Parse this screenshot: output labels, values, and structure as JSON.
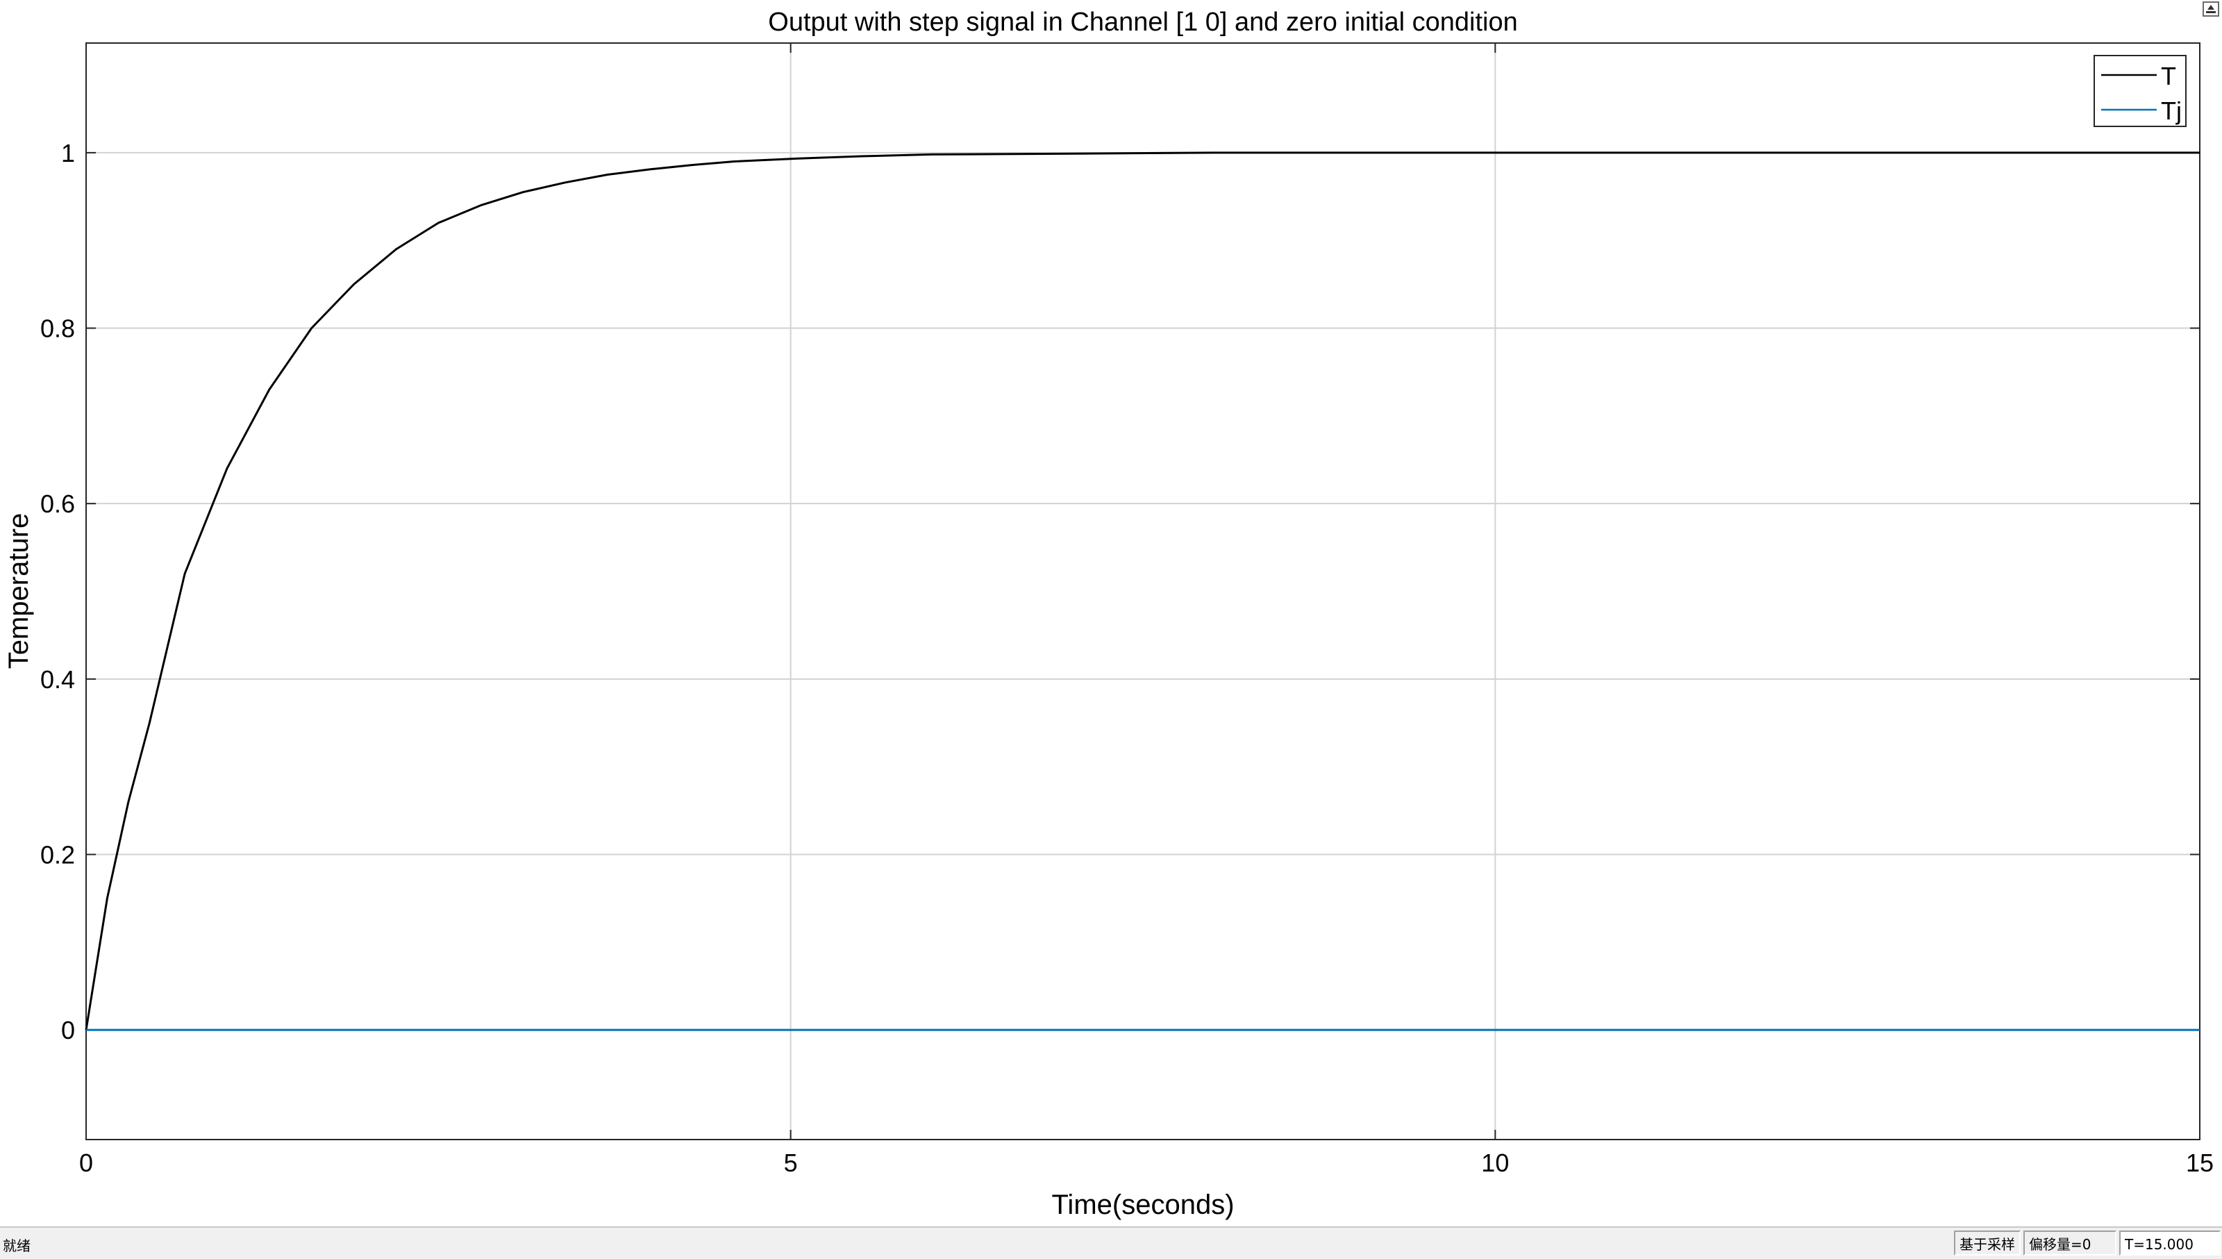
{
  "window": {
    "status": {
      "ready": "就绪",
      "sampling": "基于采样",
      "offset": "偏移量=0",
      "time": "T=15.000"
    }
  },
  "colors": {
    "series_T": "#000000",
    "series_Tj": "#0072bd",
    "grid": "#d2d2d2",
    "axes": "#262626"
  },
  "chart_data": {
    "type": "line",
    "title": "Output with step signal in Channel [1 0] and zero initial condition",
    "xlabel": "Time(seconds)",
    "ylabel": "Temperature",
    "xlim": [
      0,
      15
    ],
    "ylim": [
      -0.125,
      1.125
    ],
    "xticks": [
      0,
      5,
      10,
      15
    ],
    "xtick_labels": [
      "0",
      "5",
      "10",
      "15"
    ],
    "yticks": [
      0,
      0.2,
      0.4,
      0.6,
      0.8,
      1
    ],
    "ytick_labels": [
      "0",
      "0.2",
      "0.4",
      "0.6",
      "0.8",
      "1"
    ],
    "grid": true,
    "legend_position": "top-right",
    "series": [
      {
        "name": "T",
        "color": "#000000",
        "x": [
          0,
          0.15,
          0.3,
          0.45,
          0.7,
          1.0,
          1.3,
          1.6,
          1.9,
          2.2,
          2.5,
          2.8,
          3.1,
          3.4,
          3.7,
          4.0,
          4.3,
          4.6,
          5.0,
          5.5,
          6.0,
          7.0,
          8.0,
          10.0,
          12.0,
          15.0
        ],
        "y": [
          0,
          0.15,
          0.26,
          0.35,
          0.52,
          0.64,
          0.73,
          0.8,
          0.85,
          0.89,
          0.92,
          0.94,
          0.955,
          0.966,
          0.975,
          0.981,
          0.986,
          0.99,
          0.993,
          0.996,
          0.998,
          0.999,
          1.0,
          1.0,
          1.0,
          1.0
        ]
      },
      {
        "name": "Tj",
        "color": "#0072bd",
        "x": [
          0,
          15
        ],
        "y": [
          0,
          0
        ]
      }
    ]
  }
}
